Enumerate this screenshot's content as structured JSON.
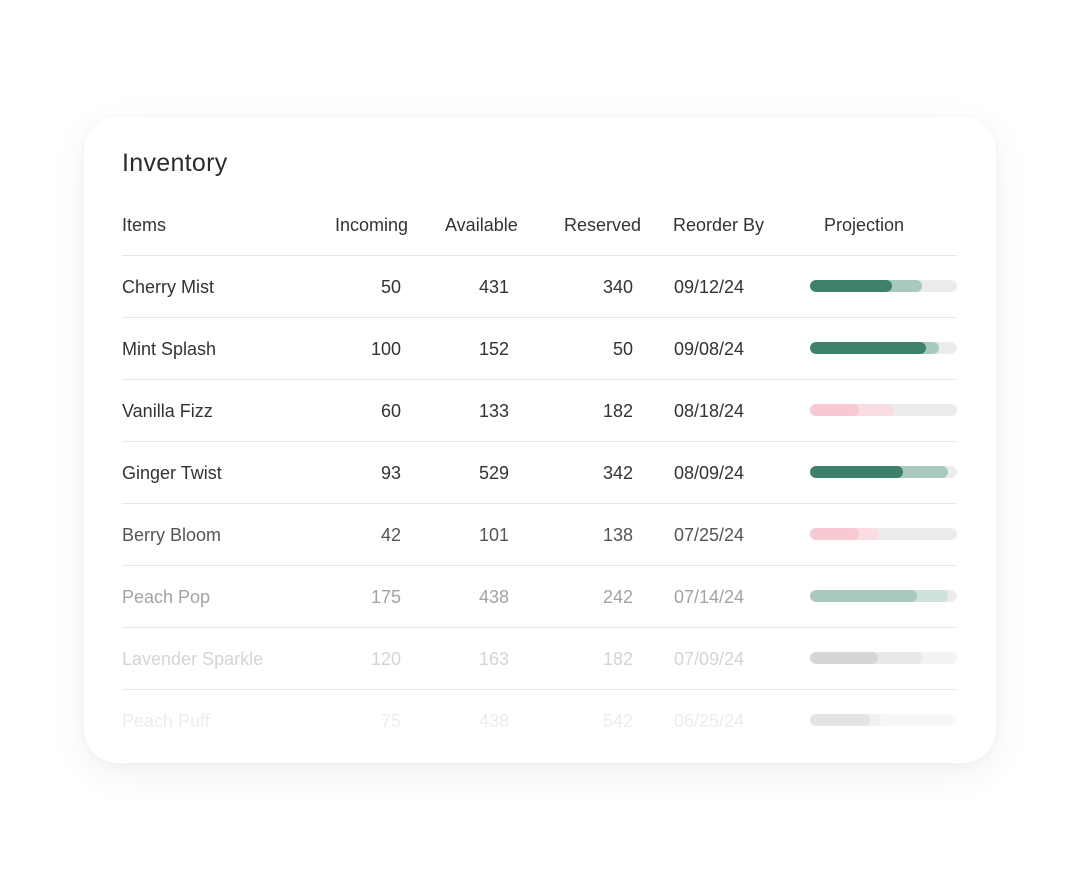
{
  "title": "Inventory",
  "columns": {
    "items": "Items",
    "incoming": "Incoming",
    "available": "Available",
    "reserved": "Reserved",
    "reorder_by": "Reorder By",
    "projection": "Projection"
  },
  "colors": {
    "green_main": "#3d8268",
    "green_light": "#a9c9bc",
    "pink": "#f8c9d2",
    "gray_track": "#ececec",
    "gray_fill": "#cfcfcf"
  },
  "rows": [
    {
      "name": "Cherry Mist",
      "incoming": "50",
      "available": "431",
      "reserved": "340",
      "reorder_by": "09/12/24",
      "projection": {
        "main": 0.56,
        "proj": 0.76,
        "tone": "green"
      }
    },
    {
      "name": "Mint Splash",
      "incoming": "100",
      "available": "152",
      "reserved": "50",
      "reorder_by": "09/08/24",
      "projection": {
        "main": 0.79,
        "proj": 0.88,
        "tone": "green"
      }
    },
    {
      "name": "Vanilla Fizz",
      "incoming": "60",
      "available": "133",
      "reserved": "182",
      "reorder_by": "08/18/24",
      "projection": {
        "main": 0.33,
        "proj": 0.57,
        "tone": "pink"
      }
    },
    {
      "name": "Ginger Twist",
      "incoming": "93",
      "available": "529",
      "reserved": "342",
      "reorder_by": "08/09/24",
      "projection": {
        "main": 0.63,
        "proj": 0.94,
        "tone": "green"
      }
    },
    {
      "name": "Berry Bloom",
      "incoming": "42",
      "available": "101",
      "reserved": "138",
      "reorder_by": "07/25/24",
      "projection": {
        "main": 0.33,
        "proj": 0.47,
        "tone": "pink"
      }
    },
    {
      "name": "Peach Pop",
      "incoming": "175",
      "available": "438",
      "reserved": "242",
      "reorder_by": "07/14/24",
      "projection": {
        "main": 0.73,
        "proj": 0.94,
        "tone": "light_green"
      }
    },
    {
      "name": "Lavender Sparkle",
      "incoming": "120",
      "available": "163",
      "reserved": "182",
      "reorder_by": "07/09/24",
      "projection": {
        "main": 0.46,
        "proj": 0.77,
        "tone": "gray"
      }
    },
    {
      "name": "Peach Puff",
      "incoming": "75",
      "available": "438",
      "reserved": "542",
      "reorder_by": "06/25/24",
      "projection": {
        "main": 0.41,
        "proj": 0.48,
        "tone": "gray"
      }
    }
  ]
}
